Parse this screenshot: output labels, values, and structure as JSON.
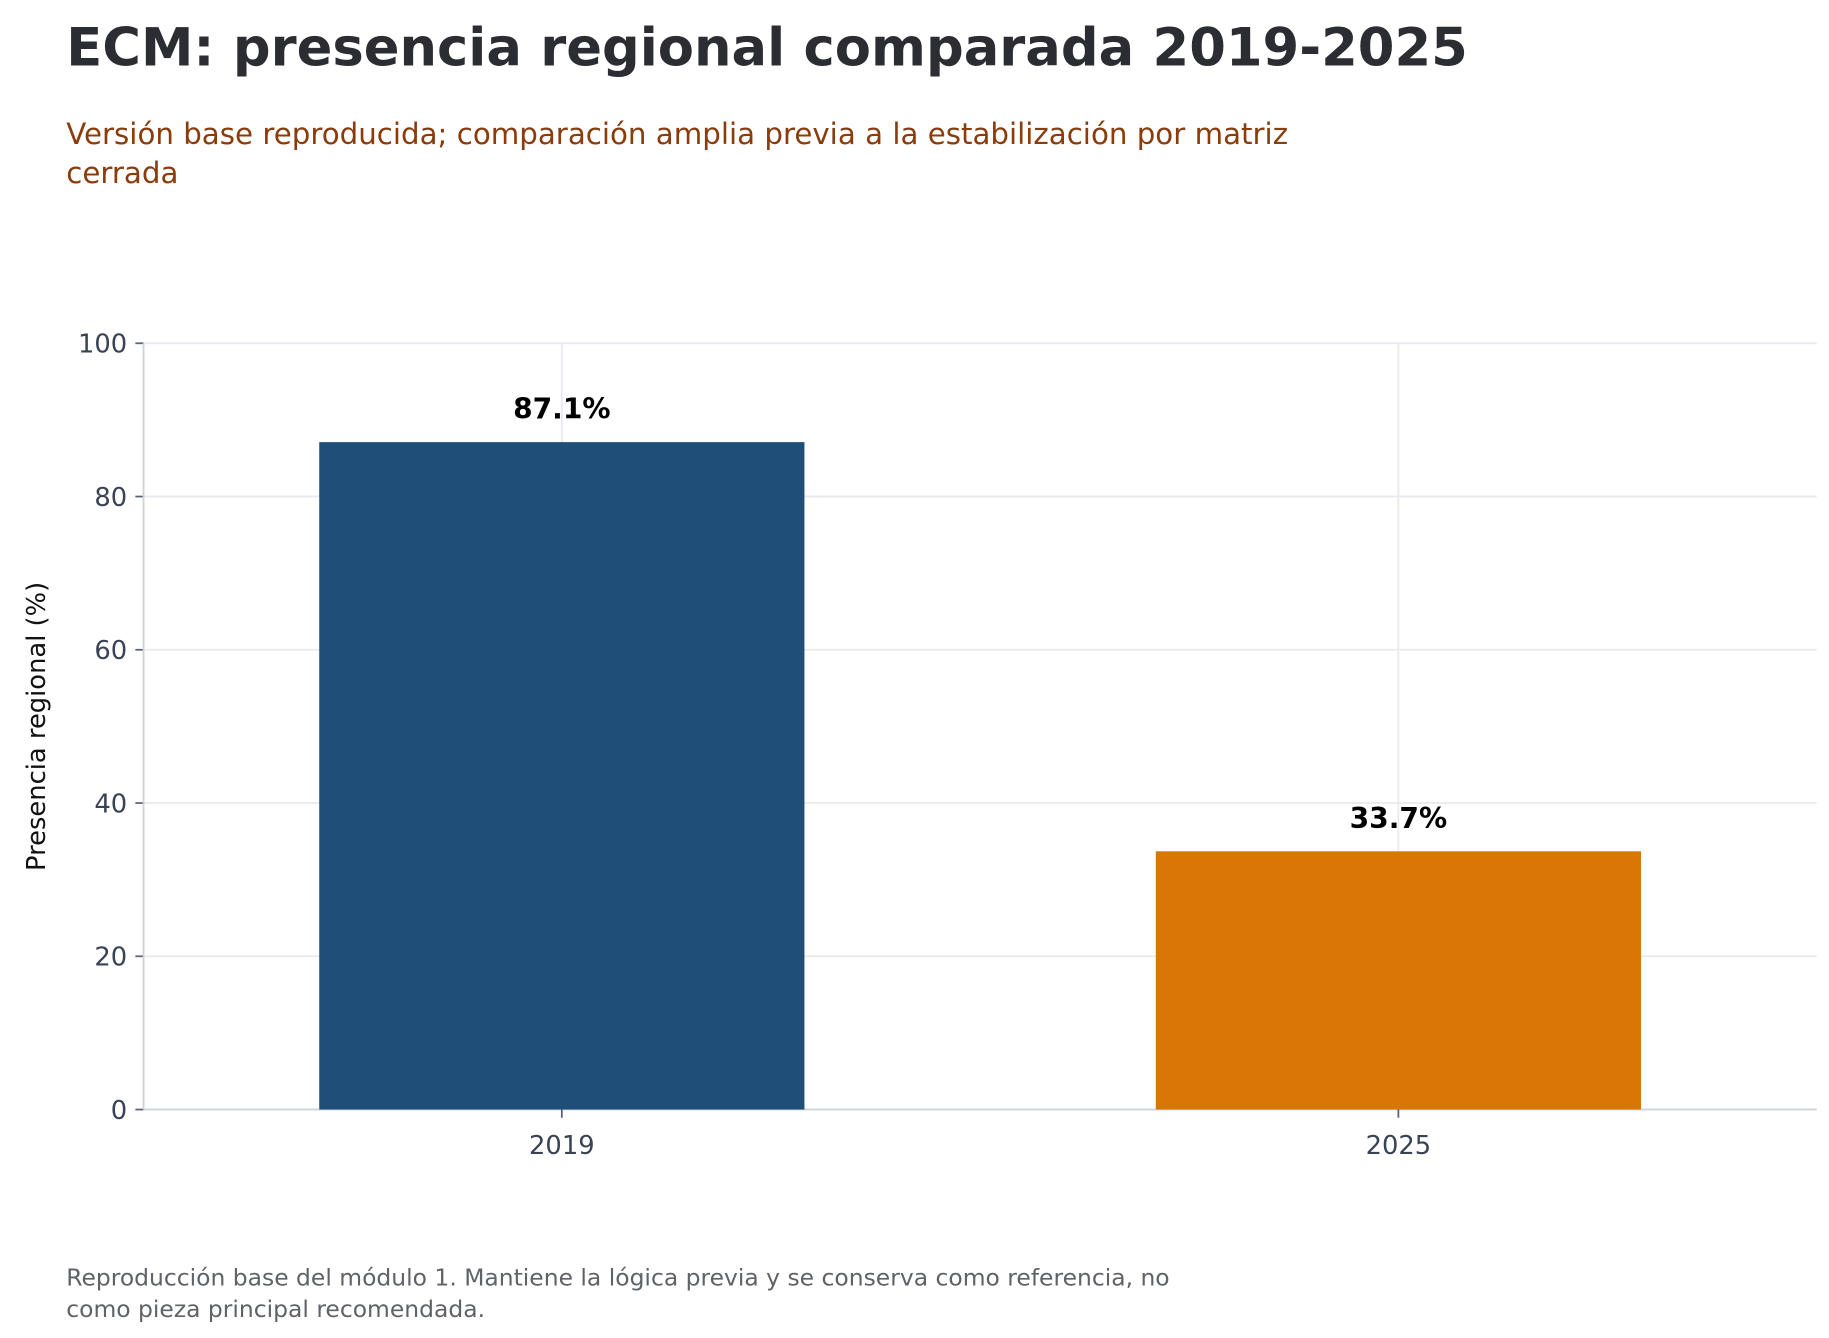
{
  "title": "ECM: presencia regional comparada 2019-2025",
  "subtitle_lines": [
    "Versión base reproducida; comparación amplia previa a la estabilización por matriz",
    "cerrada"
  ],
  "footer_lines": [
    "Reproducción base del módulo 1. Mantiene la lógica previa y se conserva como referencia, no",
    "como pieza principal recomendada."
  ],
  "colors": {
    "bar_2019": "#1f4e79",
    "bar_2025": "#d97706",
    "subtitle": "#8a3c0c",
    "title": "#2b2d33"
  },
  "chart_data": {
    "type": "bar",
    "title": "ECM: presencia regional comparada 2019-2025",
    "categories": [
      "2019",
      "2025"
    ],
    "values": [
      87.1,
      33.7
    ],
    "data_labels": [
      "87.1%",
      "33.7%"
    ],
    "xlabel": "",
    "ylabel": "Presencia regional (%)",
    "ylim": [
      0,
      100
    ],
    "yticks": [
      0,
      20,
      40,
      60,
      80,
      100
    ],
    "ytick_labels": [
      "0",
      "20",
      "40",
      "60",
      "80",
      "100"
    ],
    "grid": true,
    "legend": "none"
  }
}
